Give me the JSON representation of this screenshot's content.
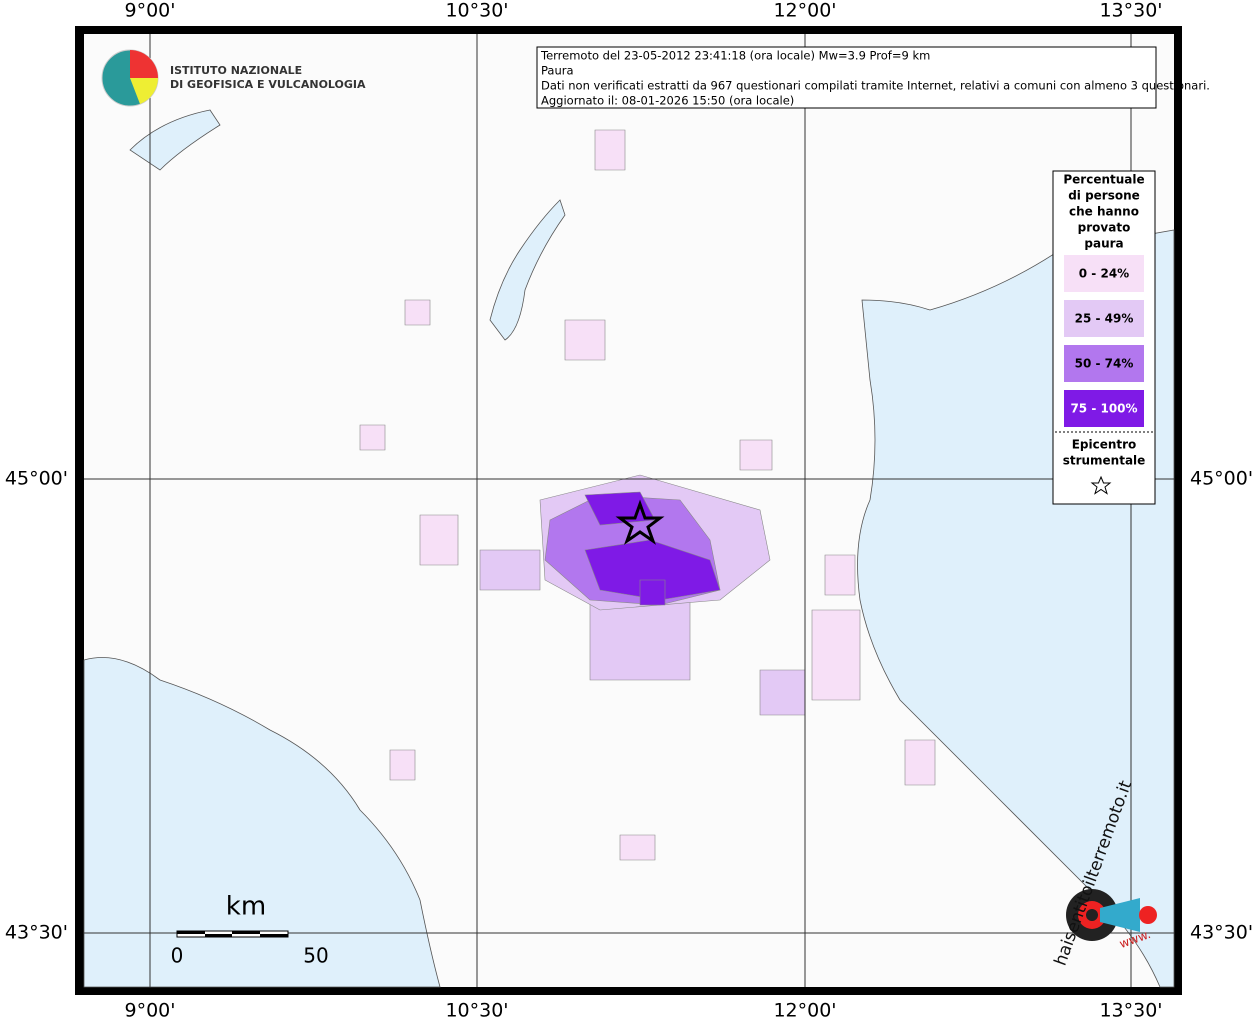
{
  "logo": {
    "lines": [
      "ISTITUTO NAZIONALE",
      "DI GEOFISICA E VULCANOLOGIA"
    ]
  },
  "info": {
    "lines": [
      "Terremoto del 23-05-2012 23:41:18 (ora locale) Mw=3.9 Prof=9 km",
      "Paura",
      "Dati non verificati estratti da 967 questionari compilati tramite Internet, relativi a comuni con almeno 3 questionari.",
      "Aggiornato il: 08-01-2026 15:50 (ora locale)"
    ]
  },
  "axes": {
    "longitudes": [
      "9°00'",
      "10°30'",
      "12°00'",
      "13°30'"
    ],
    "latitudes": [
      "45°00'",
      "43°30'"
    ]
  },
  "legend": {
    "title_lines": [
      "Percentuale",
      "di persone",
      "che hanno",
      "provato",
      "paura"
    ],
    "items": [
      {
        "label": "0 - 24%",
        "color": "#f7e0f7"
      },
      {
        "label": "25 - 49%",
        "color": "#e3c9f5"
      },
      {
        "label": "50 - 74%",
        "color": "#b277ee"
      },
      {
        "label": "75 - 100%",
        "color": "#7f1ae6"
      }
    ],
    "epicenter_lines": [
      "Epicentro",
      "strumentale"
    ]
  },
  "scale": {
    "unit": "km",
    "start": "0",
    "end": "50"
  },
  "watermark": {
    "site": "haisentitoilterremoto.it",
    "prefix": "www."
  }
}
